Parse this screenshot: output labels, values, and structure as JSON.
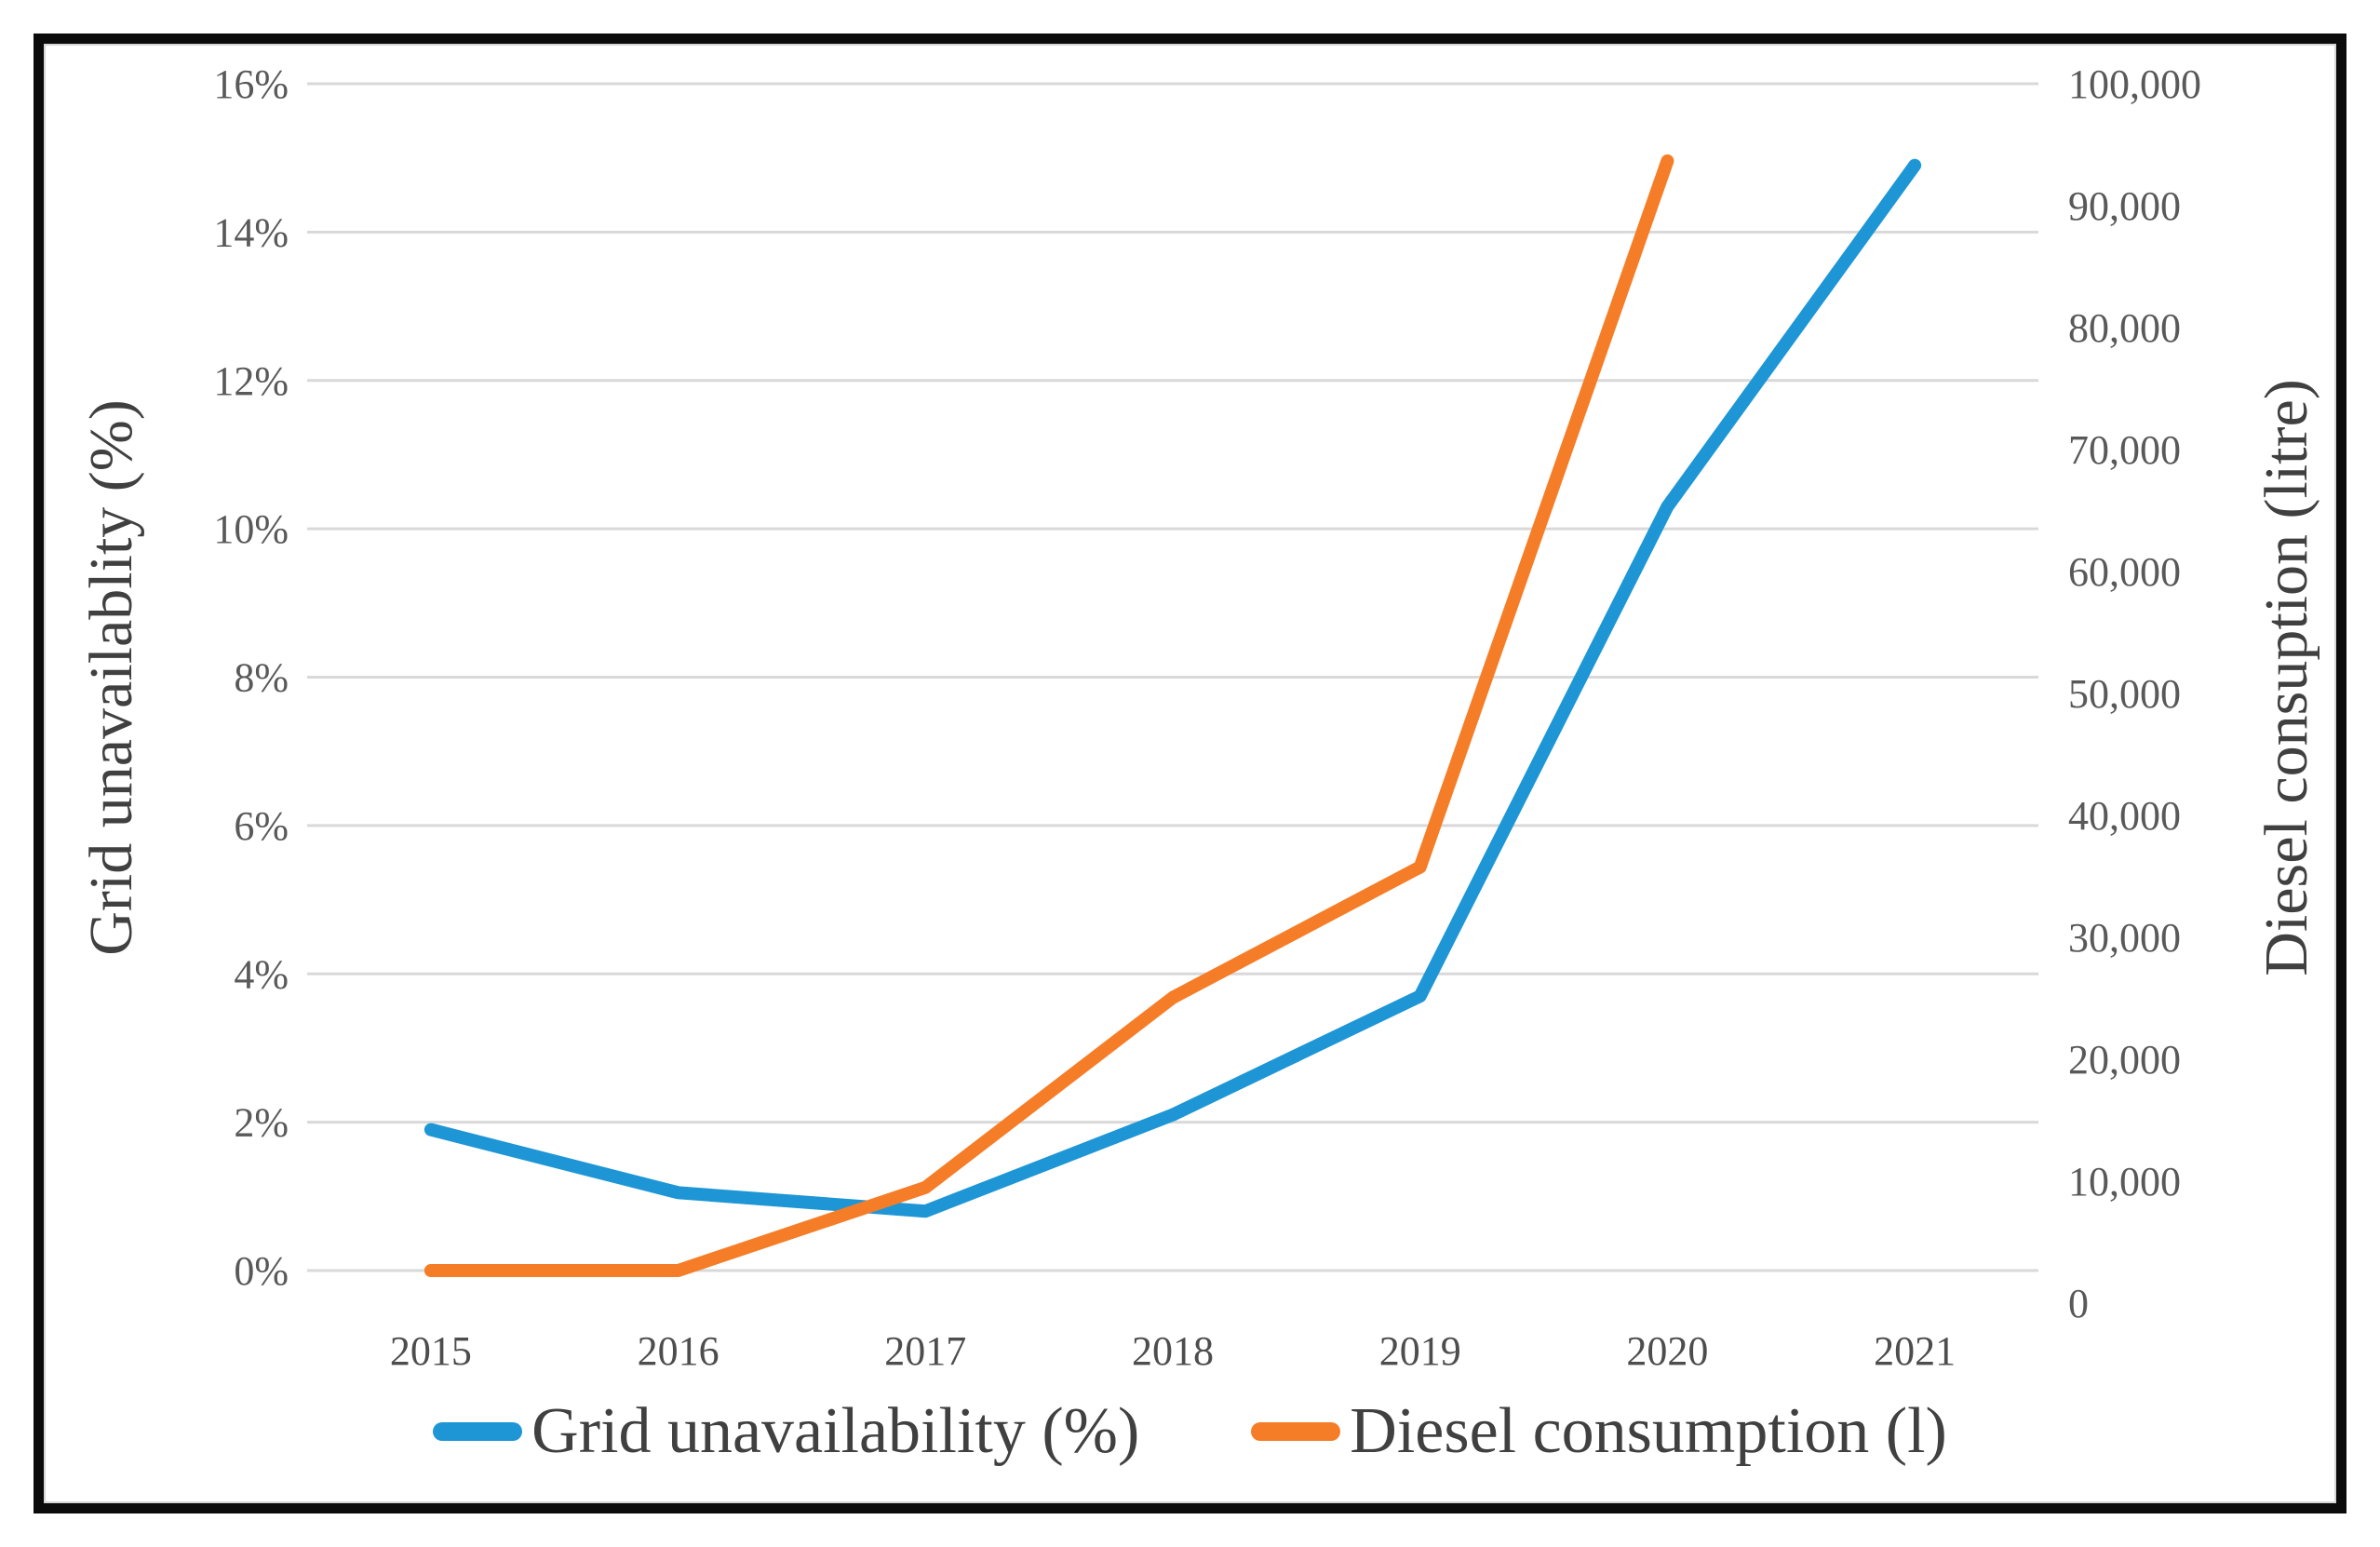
{
  "chart_data": {
    "type": "line",
    "categories": [
      "2015",
      "2016",
      "2017",
      "2018",
      "2019",
      "2020",
      "2021"
    ],
    "series": [
      {
        "name": "Grid unavailability (%)",
        "axis": "left",
        "color": "#1E96D5",
        "values": [
          1.9,
          1.05,
          0.8,
          2.1,
          3.7,
          10.3,
          14.9
        ]
      },
      {
        "name": "Diesel consumption (l)",
        "axis": "right",
        "color": "#F67D28",
        "values": [
          0,
          0,
          7000,
          23000,
          34000,
          93500,
          null
        ]
      }
    ],
    "left_axis": {
      "title": "Grid unavailablity (%)",
      "min": 0,
      "max": 16,
      "step": 2,
      "ticks": [
        "0%",
        "2%",
        "4%",
        "6%",
        "8%",
        "10%",
        "12%",
        "14%",
        "16%"
      ]
    },
    "right_axis": {
      "title": "Diesel consuption (litre)",
      "min": 0,
      "max": 100000,
      "step": 10000,
      "ticks": [
        "0",
        "10,000",
        "20,000",
        "30,000",
        "40,000",
        "50,000",
        "60,000",
        "70,000",
        "80,000",
        "90,000",
        "100,000"
      ]
    },
    "legend": [
      {
        "label": "Grid unavailability (%)",
        "color": "#1E96D5"
      },
      {
        "label": "Diesel consumption (l)",
        "color": "#F67D28"
      }
    ],
    "legend_position": "bottom",
    "grid": true,
    "gridline_color": "#D9D9D9",
    "tick_color": "#595959",
    "title_color": "#404040"
  }
}
